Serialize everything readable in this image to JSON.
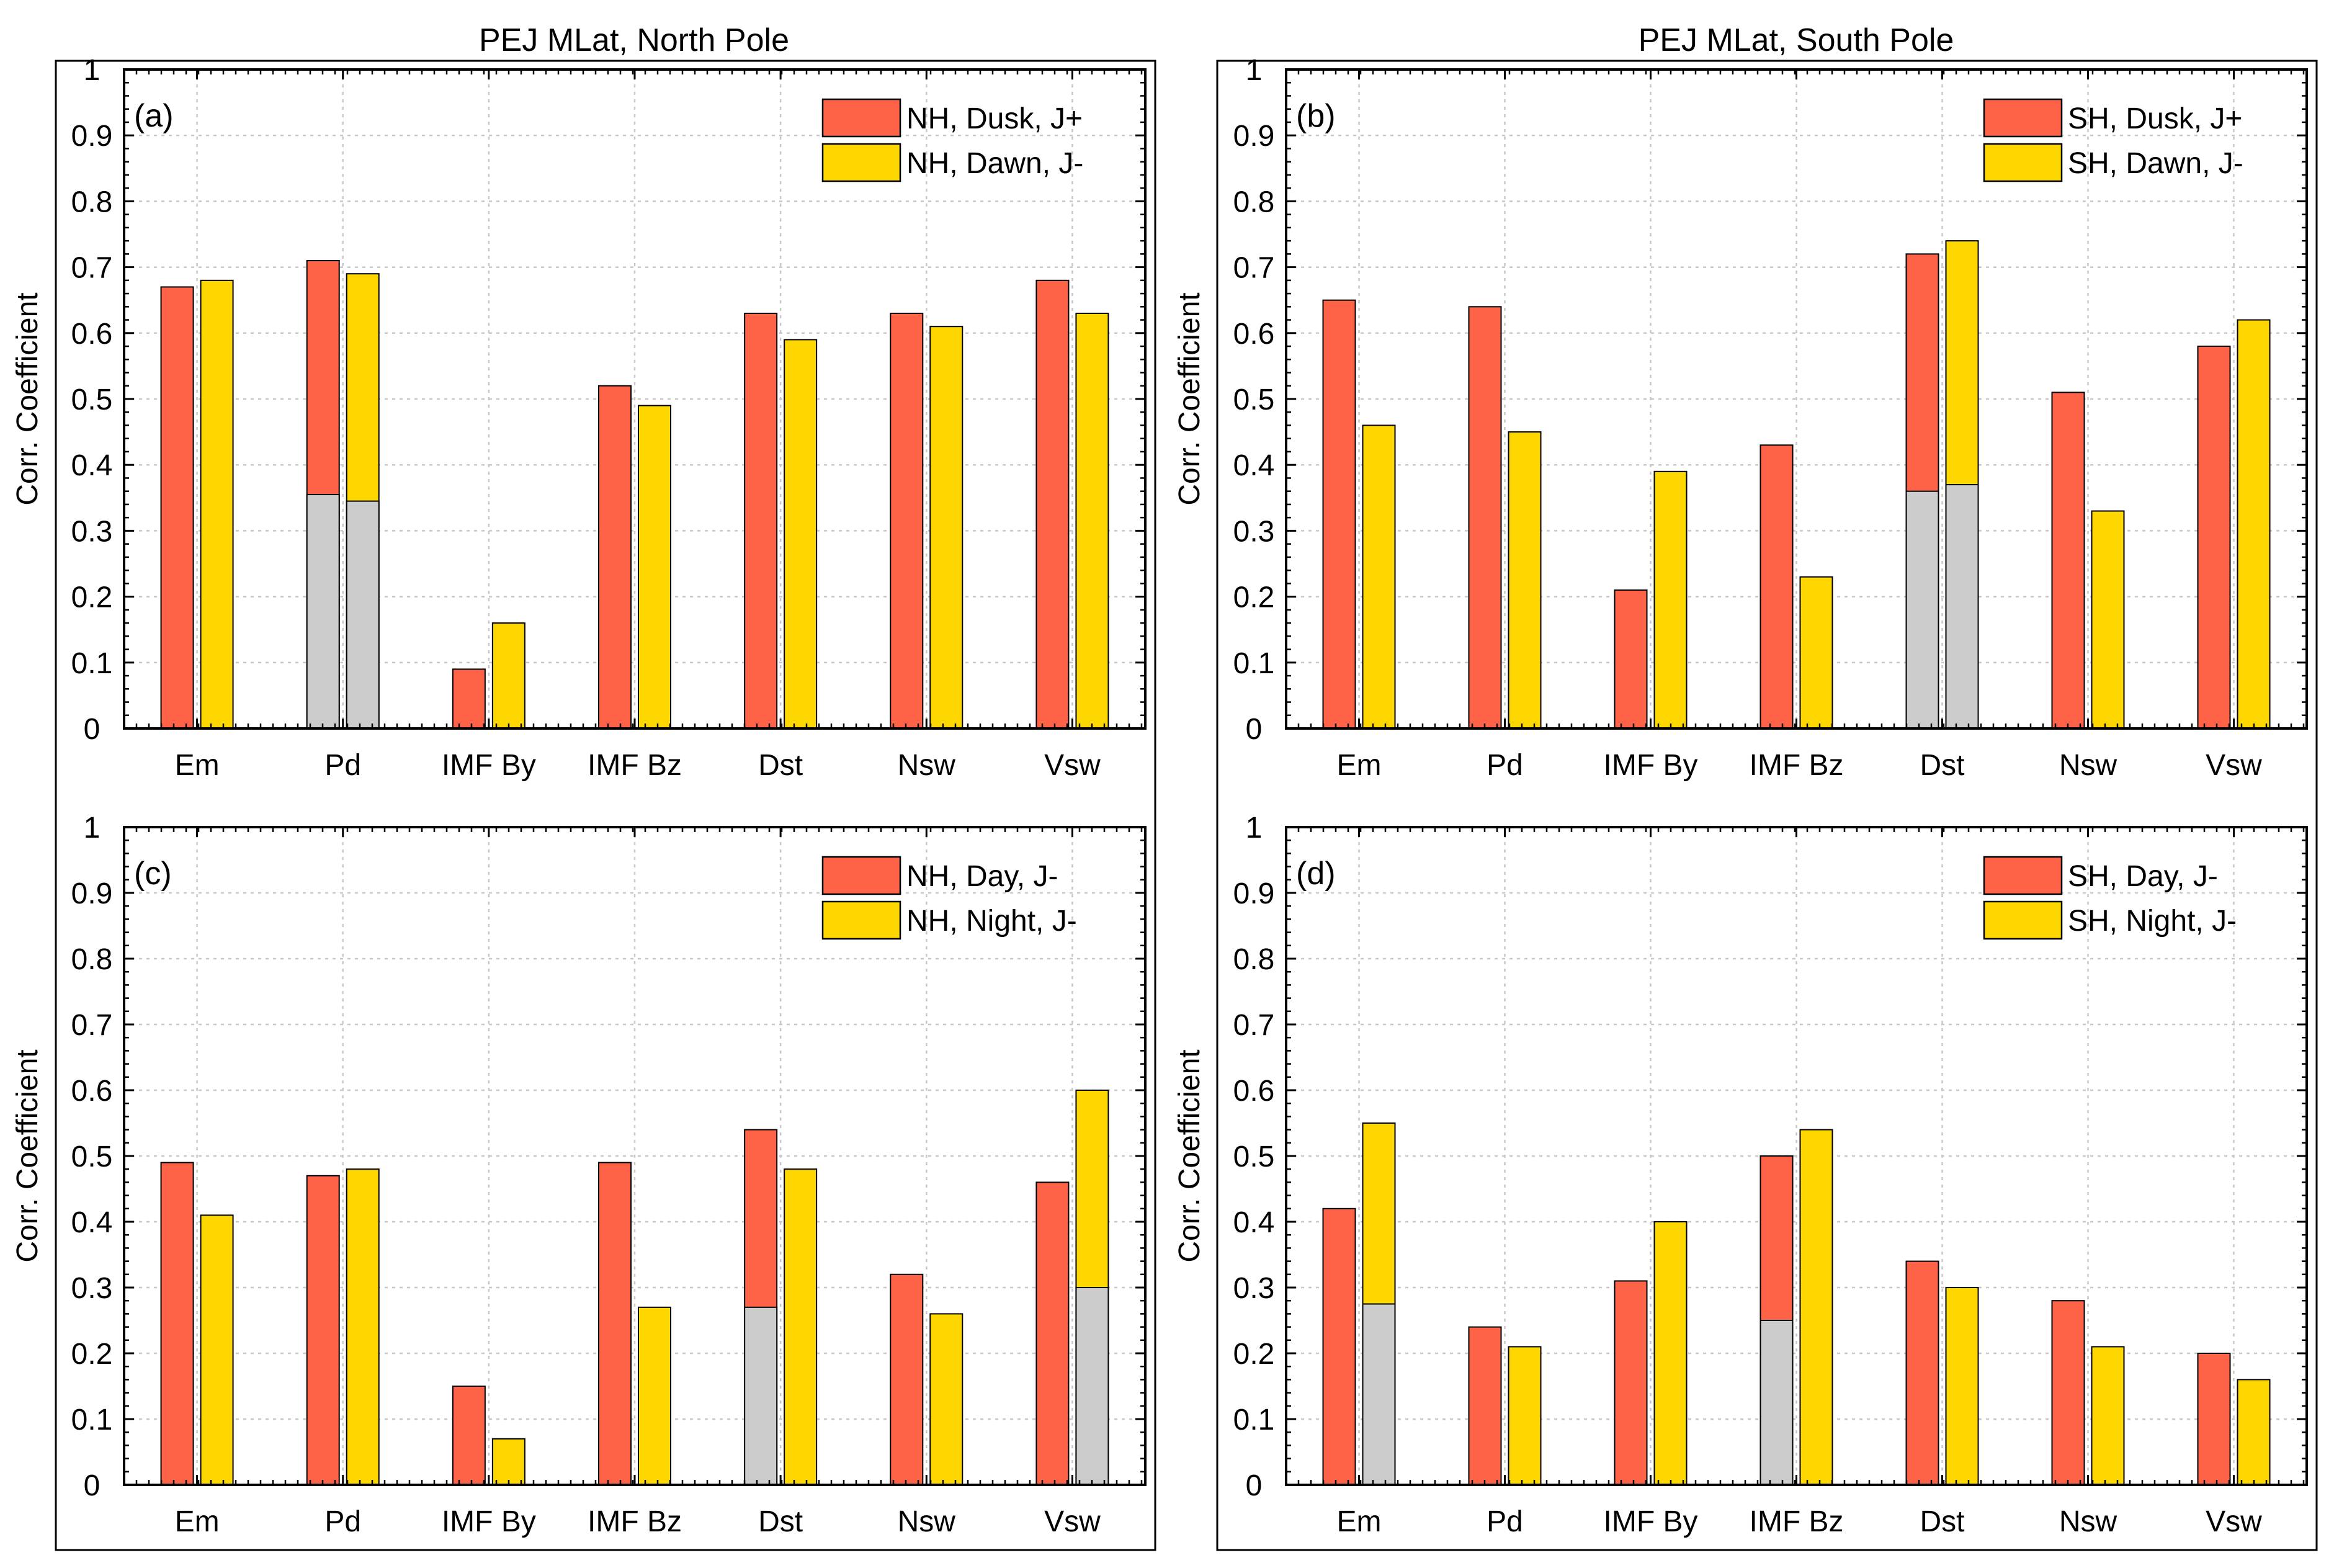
{
  "colors": {
    "series1": "#ff6347",
    "series2": "#ffd700",
    "partial": "#cccccc",
    "grid": "#c8c8c8",
    "axis": "#000000"
  },
  "titles": {
    "north": "PEJ MLat, North Pole",
    "south": "PEJ MLat, South Pole"
  },
  "chart_data": [
    {
      "type": "bar",
      "panel": "(a)",
      "title": "PEJ MLat, North Pole",
      "ylabel": "Corr. Coefficient",
      "xlabel": "",
      "ylim": [
        0,
        1
      ],
      "yticks": [
        "0",
        "0.1",
        "0.2",
        "0.3",
        "0.4",
        "0.5",
        "0.6",
        "0.7",
        "0.8",
        "0.9",
        "1"
      ],
      "grid": true,
      "legend_position": "top-right",
      "categories": [
        "Em",
        "Pd",
        "IMF By",
        "IMF Bz",
        "Dst",
        "Nsw",
        "Vsw"
      ],
      "series": [
        {
          "name": "NH, Dusk, J+",
          "values": [
            0.67,
            0.71,
            0.09,
            0.52,
            0.63,
            0.63,
            0.68
          ],
          "gray_lower": [
            null,
            0.355,
            null,
            null,
            null,
            null,
            null
          ]
        },
        {
          "name": "NH, Dawn, J-",
          "values": [
            0.68,
            0.69,
            0.16,
            0.49,
            0.59,
            0.61,
            0.63
          ],
          "gray_lower": [
            null,
            0.345,
            null,
            null,
            null,
            null,
            null
          ]
        }
      ]
    },
    {
      "type": "bar",
      "panel": "(b)",
      "title": "PEJ MLat, South Pole",
      "ylabel": "Corr. Coefficient",
      "xlabel": "",
      "ylim": [
        0,
        1
      ],
      "yticks": [
        "0",
        "0.1",
        "0.2",
        "0.3",
        "0.4",
        "0.5",
        "0.6",
        "0.7",
        "0.8",
        "0.9",
        "1"
      ],
      "grid": true,
      "legend_position": "top-right",
      "categories": [
        "Em",
        "Pd",
        "IMF By",
        "IMF Bz",
        "Dst",
        "Nsw",
        "Vsw"
      ],
      "series": [
        {
          "name": "SH, Dusk, J+",
          "values": [
            0.65,
            0.64,
            0.21,
            0.43,
            0.72,
            0.51,
            0.58
          ],
          "gray_lower": [
            null,
            null,
            null,
            null,
            0.36,
            null,
            null
          ]
        },
        {
          "name": "SH, Dawn, J-",
          "values": [
            0.46,
            0.45,
            0.39,
            0.23,
            0.74,
            0.33,
            0.62
          ],
          "gray_lower": [
            null,
            null,
            null,
            null,
            0.37,
            null,
            null
          ]
        }
      ]
    },
    {
      "type": "bar",
      "panel": "(c)",
      "title": "",
      "ylabel": "Corr. Coefficient",
      "xlabel": "",
      "ylim": [
        0,
        1
      ],
      "yticks": [
        "0",
        "0.1",
        "0.2",
        "0.3",
        "0.4",
        "0.5",
        "0.6",
        "0.7",
        "0.8",
        "0.9",
        "1"
      ],
      "grid": true,
      "legend_position": "top-right",
      "categories": [
        "Em",
        "Pd",
        "IMF By",
        "IMF Bz",
        "Dst",
        "Nsw",
        "Vsw"
      ],
      "series": [
        {
          "name": "NH, Day, J-",
          "values": [
            0.49,
            0.47,
            0.15,
            0.49,
            0.54,
            0.32,
            0.46
          ],
          "gray_lower": [
            null,
            null,
            null,
            null,
            0.27,
            null,
            null
          ]
        },
        {
          "name": "NH, Night, J-",
          "values": [
            0.41,
            0.48,
            0.07,
            0.27,
            0.48,
            0.26,
            0.6
          ],
          "gray_lower": [
            null,
            null,
            null,
            null,
            null,
            null,
            0.3
          ]
        }
      ]
    },
    {
      "type": "bar",
      "panel": "(d)",
      "title": "",
      "ylabel": "Corr. Coefficient",
      "xlabel": "",
      "ylim": [
        0,
        1
      ],
      "yticks": [
        "0",
        "0.1",
        "0.2",
        "0.3",
        "0.4",
        "0.5",
        "0.6",
        "0.7",
        "0.8",
        "0.9",
        "1"
      ],
      "grid": true,
      "legend_position": "top-right",
      "categories": [
        "Em",
        "Pd",
        "IMF By",
        "IMF Bz",
        "Dst",
        "Nsw",
        "Vsw"
      ],
      "series": [
        {
          "name": "SH, Day, J-",
          "values": [
            0.42,
            0.24,
            0.31,
            0.5,
            0.34,
            0.28,
            0.2
          ],
          "gray_lower": [
            null,
            null,
            null,
            0.25,
            null,
            null,
            null
          ]
        },
        {
          "name": "SH, Night, J-",
          "values": [
            0.55,
            0.21,
            0.4,
            0.54,
            0.3,
            0.21,
            0.16
          ],
          "gray_lower": [
            0.275,
            null,
            null,
            null,
            null,
            null,
            null
          ]
        }
      ]
    }
  ]
}
